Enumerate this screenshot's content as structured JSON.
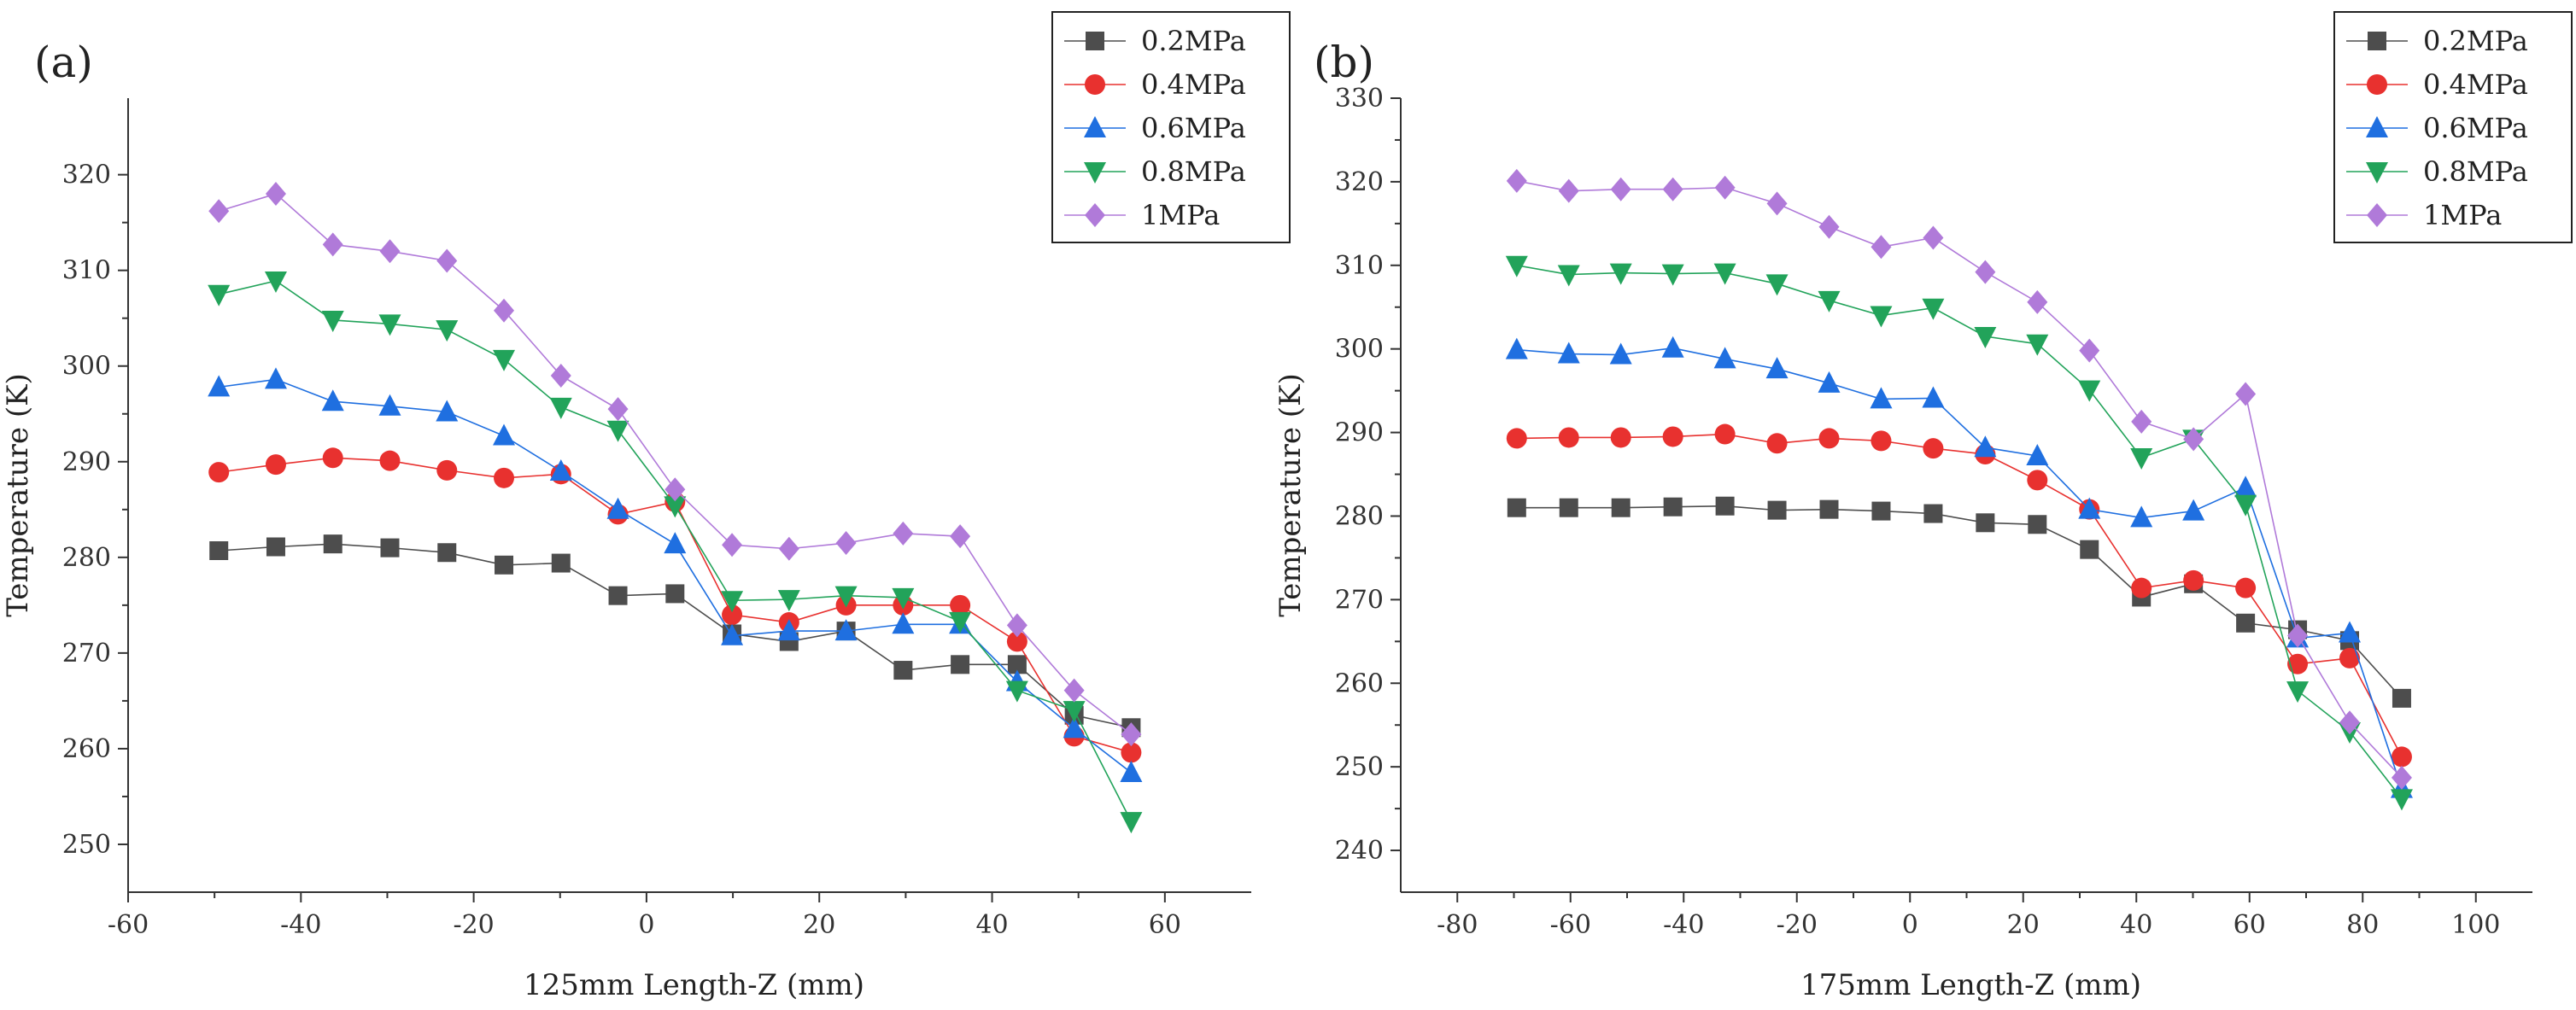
{
  "figure": {
    "description_labels": [
      "(a)",
      "(b)"
    ]
  },
  "chart_data": [
    {
      "type": "line",
      "panel_label": "(a)",
      "xlabel": "125mm Length-Z (mm)",
      "ylabel": "Temperature (K)",
      "xlim": [
        -60,
        70
      ],
      "ylim": [
        245,
        328
      ],
      "xticks": [
        -60,
        -40,
        -20,
        0,
        20,
        40,
        60
      ],
      "yticks": [
        250,
        260,
        270,
        280,
        290,
        300,
        310,
        320
      ],
      "grid": false,
      "legend_position": "top-right",
      "x": [
        -49.5,
        -42.9,
        -36.3,
        -29.7,
        -23.1,
        -16.5,
        -9.9,
        -3.3,
        3.3,
        9.9,
        16.5,
        23.1,
        29.7,
        36.3,
        42.9,
        49.5,
        56.1
      ],
      "series": [
        {
          "name": "0.2MPa",
          "color": "#4d4d4d",
          "marker": "square",
          "values": [
            280.7,
            281.1,
            281.4,
            281.0,
            280.5,
            279.2,
            279.4,
            276.0,
            276.2,
            272.0,
            271.2,
            272.3,
            268.2,
            268.8,
            268.8,
            263.5,
            262.2
          ]
        },
        {
          "name": "0.4MPa",
          "color": "#e8312f",
          "marker": "circle",
          "values": [
            288.9,
            289.7,
            290.4,
            290.1,
            289.1,
            288.3,
            288.7,
            284.5,
            285.8,
            274.0,
            273.2,
            275.0,
            275.0,
            275.0,
            271.2,
            261.3,
            259.6
          ]
        },
        {
          "name": "0.6MPa",
          "color": "#1f6fe0",
          "marker": "triangle-up",
          "values": [
            297.8,
            298.6,
            296.3,
            295.8,
            295.2,
            292.7,
            289.0,
            285.0,
            281.4,
            271.8,
            272.3,
            272.3,
            273.0,
            273.0,
            267.0,
            262.1,
            257.5
          ]
        },
        {
          "name": "0.8MPa",
          "color": "#22a35a",
          "marker": "triangle-down",
          "values": [
            307.5,
            308.9,
            304.8,
            304.4,
            303.8,
            300.7,
            295.7,
            293.3,
            285.4,
            275.5,
            275.6,
            276.0,
            275.8,
            273.3,
            266.1,
            264.0,
            252.4
          ]
        },
        {
          "name": "1MPa",
          "color": "#b07ad9",
          "marker": "diamond",
          "values": [
            316.2,
            318.0,
            312.7,
            312.0,
            311.0,
            305.8,
            299.0,
            295.5,
            287.1,
            281.3,
            280.9,
            281.5,
            282.5,
            282.2,
            272.9,
            266.1,
            261.5
          ]
        }
      ]
    },
    {
      "type": "line",
      "panel_label": "(b)",
      "xlabel": "175mm Length-Z (mm)",
      "ylabel": "Temperature (K)",
      "xlim": [
        -90,
        110
      ],
      "ylim": [
        235,
        330
      ],
      "xticks": [
        -80,
        -60,
        -40,
        -20,
        0,
        20,
        40,
        60,
        80,
        100
      ],
      "yticks": [
        240,
        250,
        260,
        270,
        280,
        290,
        300,
        310,
        320,
        330
      ],
      "grid": false,
      "legend_position": "top-right",
      "x": [
        -69.5,
        -60.3,
        -51.1,
        -41.9,
        -32.7,
        -23.5,
        -14.3,
        -5.1,
        4.1,
        13.3,
        22.5,
        31.7,
        40.9,
        50.1,
        59.3,
        68.5,
        77.7,
        86.9
      ],
      "series": [
        {
          "name": "0.2MPa",
          "color": "#4d4d4d",
          "marker": "square",
          "values": [
            281.0,
            281.0,
            281.0,
            281.1,
            281.2,
            280.7,
            280.8,
            280.6,
            280.3,
            279.2,
            279.0,
            276.0,
            270.3,
            271.9,
            267.2,
            266.4,
            265.1,
            258.2
          ]
        },
        {
          "name": "0.4MPa",
          "color": "#e8312f",
          "marker": "circle",
          "values": [
            289.3,
            289.4,
            289.4,
            289.5,
            289.8,
            288.7,
            289.3,
            289.0,
            288.1,
            287.4,
            284.3,
            280.8,
            271.4,
            272.3,
            271.4,
            262.3,
            263.0,
            251.2
          ]
        },
        {
          "name": "0.6MPa",
          "color": "#1f6fe0",
          "marker": "triangle-up",
          "values": [
            299.9,
            299.4,
            299.3,
            300.1,
            298.8,
            297.6,
            295.9,
            294.0,
            294.1,
            288.2,
            287.2,
            280.8,
            279.8,
            280.6,
            283.4,
            265.4,
            266.0,
            247.4
          ]
        },
        {
          "name": "0.8MPa",
          "color": "#22a35a",
          "marker": "triangle-down",
          "values": [
            310.0,
            308.9,
            309.1,
            309.0,
            309.1,
            307.8,
            305.8,
            304.0,
            304.9,
            301.5,
            300.6,
            295.1,
            287.0,
            289.2,
            281.4,
            259.1,
            254.2,
            246.2
          ]
        },
        {
          "name": "1MPa",
          "color": "#b07ad9",
          "marker": "diamond",
          "values": [
            320.1,
            318.9,
            319.1,
            319.1,
            319.3,
            317.4,
            314.6,
            312.2,
            313.3,
            309.2,
            305.6,
            299.8,
            291.3,
            289.2,
            294.6,
            265.7,
            255.3,
            248.7
          ]
        }
      ]
    }
  ]
}
